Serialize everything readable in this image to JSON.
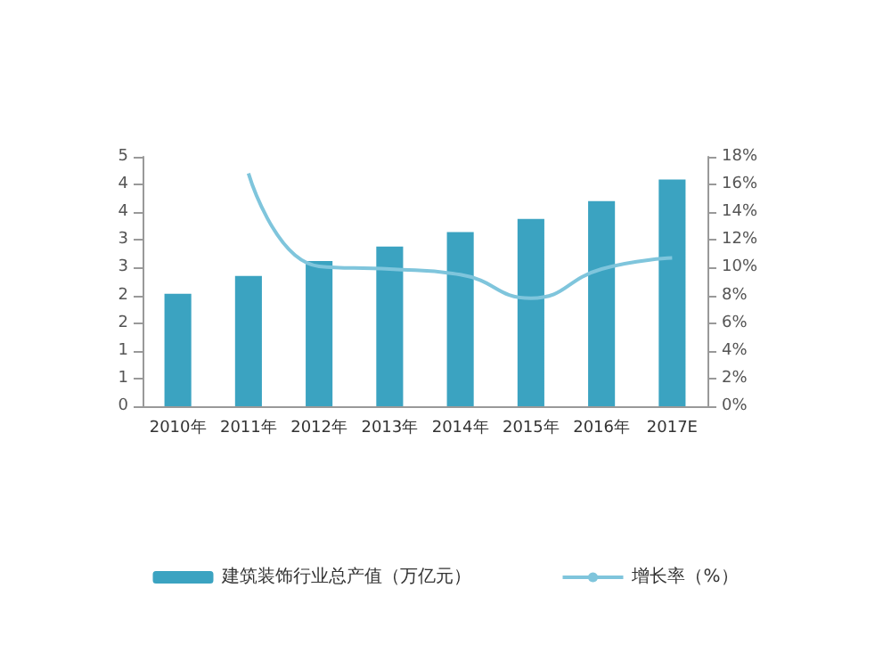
{
  "chart_data": {
    "type": "bar",
    "categories": [
      "2010年",
      "2011年",
      "2012年",
      "2013年",
      "2014年",
      "2015年",
      "2016年",
      "2017E"
    ],
    "series": [
      {
        "name": "建筑装饰行业总产值（万亿元）",
        "color": "#3ba3c1",
        "values": [
          2.03,
          2.35,
          2.62,
          2.88,
          3.14,
          3.38,
          3.7,
          4.09
        ]
      },
      {
        "name": "增长率（%）",
        "type": "line",
        "axis": "y2",
        "color": "#7fc5dc",
        "values": [
          null,
          16.8,
          10.1,
          9.9,
          9.5,
          7.8,
          9.9,
          10.7
        ]
      }
    ],
    "ylim": [
      0,
      4.5
    ],
    "yticks": [
      0,
      {
        "value": 0.5,
        "label": "1"
      },
      1,
      {
        "value": 1.5,
        "label": "2"
      },
      2,
      {
        "value": 2.5,
        "label": "3"
      },
      3,
      {
        "value": 3.5,
        "label": "4"
      },
      4,
      {
        "value": 4.5,
        "label": "5"
      }
    ],
    "y2lim": [
      0,
      18
    ],
    "y2ticks": [
      {
        "value": 0,
        "label": "0%"
      },
      {
        "value": 2,
        "label": "2%"
      },
      {
        "value": 4,
        "label": "4%"
      },
      {
        "value": 6,
        "label": "6%"
      },
      {
        "value": 8,
        "label": "8%"
      },
      {
        "value": 10,
        "label": "10%"
      },
      {
        "value": 12,
        "label": "12%"
      },
      {
        "value": 14,
        "label": "14%"
      },
      {
        "value": 16,
        "label": "16%"
      },
      {
        "value": 18,
        "label": "18%"
      }
    ],
    "legend": "bottom",
    "grid": false,
    "marker": "none",
    "line_style": "solid"
  }
}
